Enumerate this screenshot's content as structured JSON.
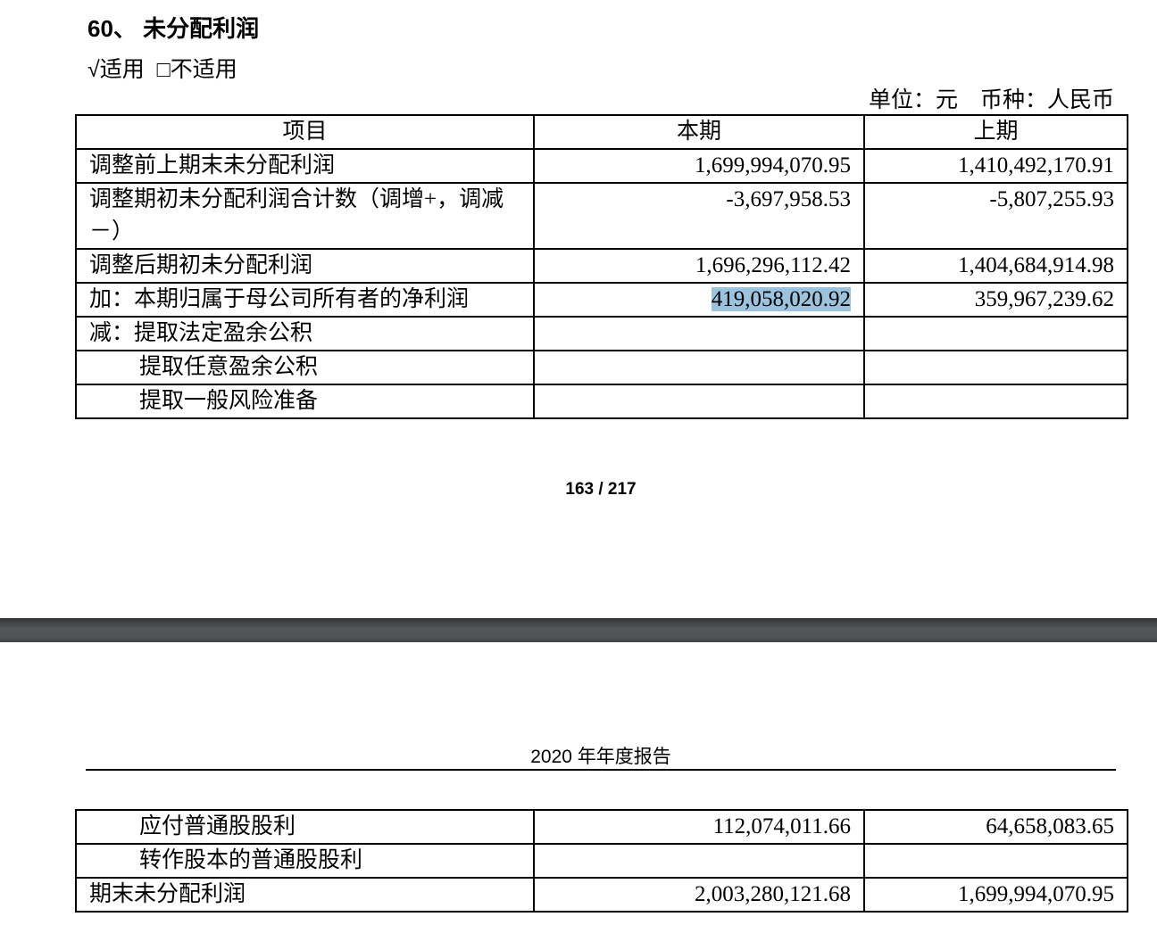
{
  "section": {
    "title": "60、 未分配利润",
    "applicable": "√适用",
    "not_applicable": "□不适用",
    "unit": "单位：元　币种：人民币"
  },
  "table": {
    "headers": [
      "项目",
      "本期",
      "上期"
    ],
    "rows": [
      {
        "item": "调整前上期末未分配利润",
        "current": "1,699,994,070.95",
        "previous": "1,410,492,170.91"
      },
      {
        "item": "调整期初未分配利润合计数（调增+，调减－）",
        "current": "-3,697,958.53",
        "previous": "-5,807,255.93"
      },
      {
        "item": "调整后期初未分配利润",
        "current": "1,696,296,112.42",
        "previous": "1,404,684,914.98"
      },
      {
        "item": "加：本期归属于母公司所有者的净利润",
        "current": "419,058,020.92",
        "previous": "359,967,239.62"
      },
      {
        "item": "减：提取法定盈余公积",
        "current": "",
        "previous": ""
      },
      {
        "item": "提取任意盈余公积",
        "current": "",
        "previous": ""
      },
      {
        "item": "提取一般风险准备",
        "current": "",
        "previous": ""
      }
    ],
    "rows_next_page": [
      {
        "item": "应付普通股股利",
        "current": "112,074,011.66",
        "previous": "64,658,083.65"
      },
      {
        "item": "转作股本的普通股股利",
        "current": "",
        "previous": ""
      },
      {
        "item": "期末未分配利润",
        "current": "2,003,280,121.68",
        "previous": "1,699,994,070.95"
      }
    ]
  },
  "page_number": "163 / 217",
  "report_header": "2020 年年度报告",
  "highlight_color": "#9cc3dd"
}
